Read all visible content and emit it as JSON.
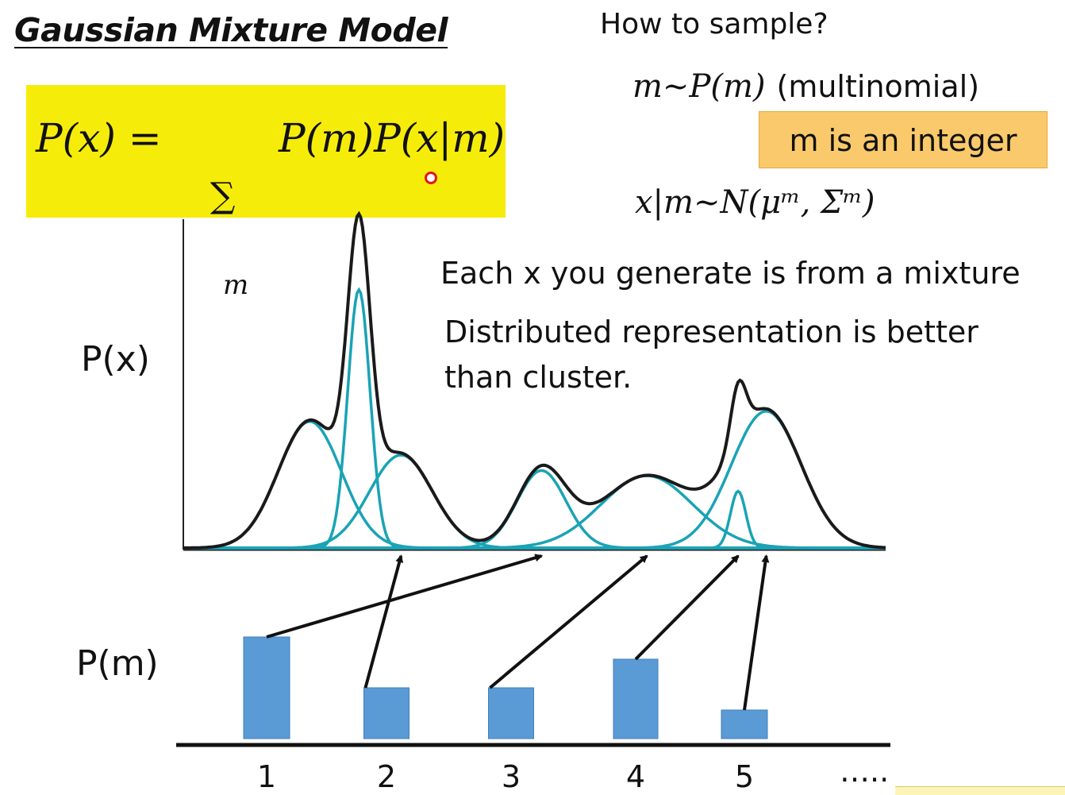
{
  "title": "Gaussian Mixture Model",
  "formula": {
    "lhs": "P(x) = ",
    "sum": "∑",
    "sum_sub": "m",
    "rhs": "P(m)P(x|m)"
  },
  "sampling": {
    "heading": "How to sample?",
    "step1": "m~P(m)",
    "step1_note": "(multinomial)",
    "integer_note": "m is an integer",
    "step2": "x|m~N(μᵐ, Σᵐ)"
  },
  "notes": {
    "mixture": "Each x you generate is from a mixture",
    "distributed": "Distributed representation is better than cluster."
  },
  "labels": {
    "px": "P(x)",
    "pm": "P(m)",
    "ellipsis": "….."
  },
  "colors": {
    "mixture_curve": "#1a1a1a",
    "component_curve": "#1aa3b5",
    "bar": "#5b9bd5",
    "highlight_formula": "#f6ec0a",
    "highlight_note": "#f9c96b"
  },
  "chart_data": [
    {
      "type": "line",
      "ylabel": "P(x)",
      "series": [
        {
          "kind": "mixture",
          "values": "sum of components"
        },
        {
          "kind": "component",
          "mean": 0.18,
          "sd": 0.045,
          "height": 0.49
        },
        {
          "kind": "component",
          "mean": 0.25,
          "sd": 0.016,
          "height": 1.0
        },
        {
          "kind": "component",
          "mean": 0.31,
          "sd": 0.045,
          "height": 0.36
        },
        {
          "kind": "component",
          "mean": 0.51,
          "sd": 0.035,
          "height": 0.3
        },
        {
          "kind": "component",
          "mean": 0.66,
          "sd": 0.065,
          "height": 0.28
        },
        {
          "kind": "component",
          "mean": 0.79,
          "sd": 0.011,
          "height": 0.22
        },
        {
          "kind": "component",
          "mean": 0.83,
          "sd": 0.05,
          "height": 0.53
        }
      ]
    },
    {
      "type": "bar",
      "ylabel": "P(m)",
      "categories": [
        "1",
        "2",
        "3",
        "4",
        "5"
      ],
      "values": [
        0.32,
        0.16,
        0.16,
        0.25,
        0.09
      ],
      "arrows_to_component": [
        [
          1,
          3
        ],
        [
          2,
          2
        ],
        [
          3,
          4
        ],
        [
          4,
          5
        ],
        [
          5,
          6
        ]
      ]
    }
  ]
}
